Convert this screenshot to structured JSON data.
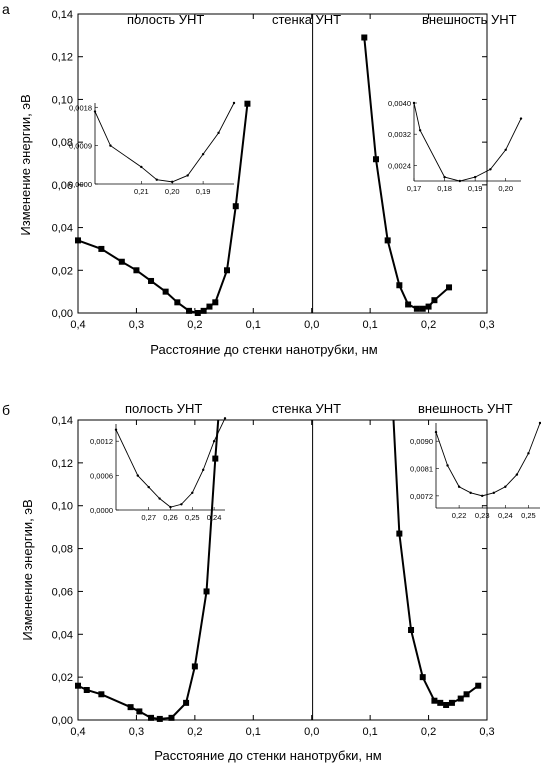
{
  "chart_data": [
    {
      "panel_label": "а",
      "type": "scatter",
      "xlabel": "Расстояние до стенки нанотрубки, нм",
      "ylabel": "Изменение энергии, эВ",
      "region_labels": [
        "полость УНТ",
        "стенка УНТ",
        "внешность УНТ"
      ],
      "xlim": [
        -0.4,
        0.3
      ],
      "ylim": [
        0,
        0.14
      ],
      "x_ticks": [
        -0.4,
        -0.3,
        -0.2,
        -0.1,
        0.0,
        0.1,
        0.2,
        0.3
      ],
      "x_tick_labels": [
        "0,4",
        "0,3",
        "0,2",
        "0,1",
        "0,0",
        "0,1",
        "0,2",
        "0,3"
      ],
      "y_ticks": [
        0,
        0.02,
        0.04,
        0.06,
        0.08,
        0.1,
        0.12,
        0.14
      ],
      "y_tick_labels": [
        "0,00",
        "0,02",
        "0,04",
        "0,06",
        "0,08",
        "0,10",
        "0,12",
        "0,14"
      ],
      "series": [
        {
          "points": [
            [
              -0.4,
              0.034
            ],
            [
              -0.36,
              0.03
            ],
            [
              -0.325,
              0.024
            ],
            [
              -0.3,
              0.02
            ],
            [
              -0.275,
              0.015
            ],
            [
              -0.25,
              0.01
            ],
            [
              -0.23,
              0.005
            ],
            [
              -0.21,
              0.001
            ],
            [
              -0.195,
              0.0
            ],
            [
              -0.185,
              0.001
            ],
            [
              -0.175,
              0.003
            ],
            [
              -0.165,
              0.005
            ],
            [
              -0.145,
              0.02
            ],
            [
              -0.13,
              0.05
            ],
            [
              -0.11,
              0.098
            ]
          ]
        },
        {
          "points": [
            [
              0.09,
              0.129
            ],
            [
              0.11,
              0.072
            ],
            [
              0.13,
              0.034
            ],
            [
              0.15,
              0.013
            ],
            [
              0.165,
              0.004
            ],
            [
              0.18,
              0.002
            ],
            [
              0.19,
              0.002
            ],
            [
              0.2,
              0.003
            ],
            [
              0.21,
              0.006
            ],
            [
              0.235,
              0.012
            ]
          ]
        }
      ],
      "insets": [
        {
          "xlim": [
            -0.225,
            -0.18
          ],
          "ylim": [
            0,
            0.0019
          ],
          "x_ticks": [
            -0.21,
            -0.2,
            -0.19
          ],
          "x_tick_labels": [
            "0,21",
            "0,20",
            "0,19"
          ],
          "y_ticks": [
            0,
            0.0009,
            0.0018
          ],
          "y_tick_labels": [
            "0,0000",
            "0,0009",
            "0,0018"
          ],
          "points": [
            [
              -0.225,
              0.0017
            ],
            [
              -0.22,
              0.0009
            ],
            [
              -0.21,
              0.0004
            ],
            [
              -0.205,
              0.0001
            ],
            [
              -0.2,
              5e-05
            ],
            [
              -0.195,
              0.0002
            ],
            [
              -0.19,
              0.0007
            ],
            [
              -0.185,
              0.0012
            ],
            [
              -0.18,
              0.0019
            ]
          ]
        },
        {
          "xlim": [
            0.17,
            0.205
          ],
          "ylim": [
            0.002,
            0.004
          ],
          "x_ticks": [
            0.17,
            0.18,
            0.19,
            0.2
          ],
          "x_tick_labels": [
            "0,17",
            "0,18",
            "0,19",
            "0,20"
          ],
          "y_ticks": [
            0.0024,
            0.0032,
            0.004
          ],
          "y_tick_labels": [
            "0,0024",
            "0,0032",
            "0,0040"
          ],
          "points": [
            [
              0.17,
              0.004
            ],
            [
              0.172,
              0.0033
            ],
            [
              0.18,
              0.0021
            ],
            [
              0.185,
              0.002
            ],
            [
              0.19,
              0.0021
            ],
            [
              0.195,
              0.0023
            ],
            [
              0.2,
              0.0028
            ],
            [
              0.205,
              0.0036
            ]
          ]
        }
      ]
    },
    {
      "panel_label": "б",
      "type": "scatter",
      "xlabel": "Расстояние до стенки нанотрубки, нм",
      "ylabel": "Изменение энергии, эВ",
      "region_labels": [
        "полость УНТ",
        "стенка УНТ",
        "внешность УНТ"
      ],
      "xlim": [
        -0.4,
        0.3
      ],
      "ylim": [
        0,
        0.14
      ],
      "x_ticks": [
        -0.4,
        -0.3,
        -0.2,
        -0.1,
        0.0,
        0.1,
        0.2,
        0.3
      ],
      "x_tick_labels": [
        "0,4",
        "0,3",
        "0,2",
        "0,1",
        "0,0",
        "0,1",
        "0,2",
        "0,3"
      ],
      "y_ticks": [
        0,
        0.02,
        0.04,
        0.06,
        0.08,
        0.1,
        0.12,
        0.14
      ],
      "y_tick_labels": [
        "0,00",
        "0,02",
        "0,04",
        "0,06",
        "0,08",
        "0,10",
        "0,12",
        "0,14"
      ],
      "series": [
        {
          "points": [
            [
              -0.4,
              0.016
            ],
            [
              -0.385,
              0.014
            ],
            [
              -0.36,
              0.012
            ],
            [
              -0.31,
              0.006
            ],
            [
              -0.295,
              0.004
            ],
            [
              -0.275,
              0.001
            ],
            [
              -0.26,
              0.0005
            ],
            [
              -0.24,
              0.001
            ],
            [
              -0.215,
              0.008
            ],
            [
              -0.2,
              0.025
            ],
            [
              -0.18,
              0.06
            ],
            [
              -0.165,
              0.122
            ],
            [
              -0.16,
              0.14
            ]
          ]
        },
        {
          "points": [
            [
              0.14,
              0.14
            ],
            [
              0.15,
              0.087
            ],
            [
              0.17,
              0.042
            ],
            [
              0.19,
              0.02
            ],
            [
              0.21,
              0.009
            ],
            [
              0.22,
              0.008
            ],
            [
              0.23,
              0.007
            ],
            [
              0.24,
              0.008
            ],
            [
              0.255,
              0.01
            ],
            [
              0.265,
              0.012
            ],
            [
              0.285,
              0.016
            ]
          ]
        }
      ],
      "insets": [
        {
          "xlim": [
            -0.285,
            -0.235
          ],
          "ylim": [
            0,
            0.0015
          ],
          "x_ticks": [
            -0.27,
            -0.26,
            -0.25,
            -0.24
          ],
          "x_tick_labels": [
            "0,27",
            "0,26",
            "0,25",
            "0,24"
          ],
          "y_ticks": [
            0,
            0.0006,
            0.0012
          ],
          "y_tick_labels": [
            "0,0000",
            "0,0006",
            "0,0012"
          ],
          "points": [
            [
              -0.285,
              0.0014
            ],
            [
              -0.275,
              0.0006
            ],
            [
              -0.27,
              0.0004
            ],
            [
              -0.265,
              0.0002
            ],
            [
              -0.26,
              5e-05
            ],
            [
              -0.255,
              0.0001
            ],
            [
              -0.25,
              0.0003
            ],
            [
              -0.245,
              0.0007
            ],
            [
              -0.24,
              0.0012
            ],
            [
              -0.235,
              0.0016
            ]
          ]
        },
        {
          "xlim": [
            0.21,
            0.255
          ],
          "ylim": [
            0.0068,
            0.0096
          ],
          "x_ticks": [
            0.22,
            0.23,
            0.24,
            0.25
          ],
          "x_tick_labels": [
            "0,22",
            "0,23",
            "0,24",
            "0,25"
          ],
          "y_ticks": [
            0.0072,
            0.0081,
            0.009
          ],
          "y_tick_labels": [
            "0,0072",
            "0,0081",
            "0,0090"
          ],
          "points": [
            [
              0.21,
              0.0093
            ],
            [
              0.215,
              0.0082
            ],
            [
              0.22,
              0.0075
            ],
            [
              0.225,
              0.0073
            ],
            [
              0.23,
              0.0072
            ],
            [
              0.235,
              0.0073
            ],
            [
              0.24,
              0.0075
            ],
            [
              0.245,
              0.0079
            ],
            [
              0.25,
              0.0086
            ],
            [
              0.255,
              0.0096
            ]
          ]
        }
      ]
    }
  ]
}
